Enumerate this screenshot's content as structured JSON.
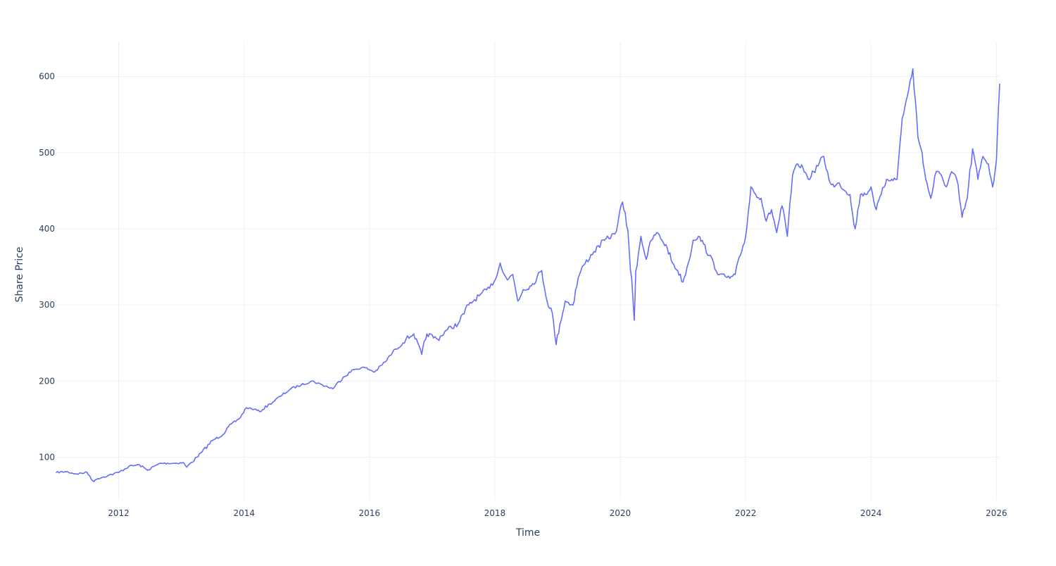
{
  "chart_data": {
    "type": "line",
    "title": "",
    "xlabel": "Time",
    "ylabel": "Share Price",
    "x_type": "date",
    "xlim": [
      "2011-01-03",
      "2026-01-20"
    ],
    "ylim": [
      44,
      645
    ],
    "x_ticks": [
      {
        "value": "2012-01-01",
        "label": "2012"
      },
      {
        "value": "2014-01-01",
        "label": "2014"
      },
      {
        "value": "2016-01-01",
        "label": "2016"
      },
      {
        "value": "2018-01-01",
        "label": "2018"
      },
      {
        "value": "2020-01-01",
        "label": "2020"
      },
      {
        "value": "2022-01-01",
        "label": "2022"
      },
      {
        "value": "2024-01-01",
        "label": "2024"
      },
      {
        "value": "2026-01-01",
        "label": "2026"
      }
    ],
    "y_ticks": [
      {
        "value": 100,
        "label": "100"
      },
      {
        "value": 200,
        "label": "200"
      },
      {
        "value": 300,
        "label": "300"
      },
      {
        "value": 400,
        "label": "400"
      },
      {
        "value": 500,
        "label": "500"
      },
      {
        "value": 600,
        "label": "600"
      }
    ],
    "grid": true,
    "legend": "none",
    "colors": {
      "line": "#636efa",
      "grid": "#ebf0f8",
      "text": "#2a3f5f",
      "background": "#ffffff"
    },
    "series": [
      {
        "x": [
          "2011-01-03",
          "2011-03-01",
          "2011-05-01",
          "2011-07-01",
          "2011-08-10",
          "2011-09-01",
          "2011-11-01",
          "2012-01-01",
          "2012-03-01",
          "2012-05-01",
          "2012-06-15",
          "2012-09-01",
          "2012-12-01",
          "2013-01-10",
          "2013-02-01",
          "2013-04-01",
          "2013-05-01",
          "2013-07-01",
          "2013-09-01",
          "2013-10-01",
          "2013-12-01",
          "2014-01-15",
          "2014-03-01",
          "2014-04-01",
          "2014-06-01",
          "2014-08-01",
          "2014-10-01",
          "2014-12-01",
          "2015-02-01",
          "2015-04-01",
          "2015-06-01",
          "2015-08-01",
          "2015-10-01",
          "2015-12-01",
          "2016-02-01",
          "2016-04-01",
          "2016-06-01",
          "2016-08-01",
          "2016-09-15",
          "2016-11-01",
          "2016-12-01",
          "2017-02-01",
          "2017-04-01",
          "2017-06-01",
          "2017-08-01",
          "2017-10-01",
          "2017-12-01",
          "2018-01-15",
          "2018-02-01",
          "2018-03-15",
          "2018-04-15",
          "2018-05-15",
          "2018-06-15",
          "2018-08-01",
          "2018-10-01",
          "2018-11-01",
          "2018-12-01",
          "2018-12-24",
          "2019-01-15",
          "2019-02-15",
          "2019-04-01",
          "2019-05-01",
          "2019-06-01",
          "2019-08-01",
          "2019-10-01",
          "2019-12-01",
          "2020-01-15",
          "2020-02-15",
          "2020-03-23",
          "2020-04-01",
          "2020-05-01",
          "2020-06-01",
          "2020-07-01",
          "2020-08-01",
          "2020-09-01",
          "2020-10-01",
          "2020-11-01",
          "2020-12-01",
          "2021-01-01",
          "2021-02-01",
          "2021-03-01",
          "2021-04-01",
          "2021-05-01",
          "2021-06-01",
          "2021-08-01",
          "2021-10-01",
          "2021-11-01",
          "2021-12-01",
          "2022-01-01",
          "2022-02-01",
          "2022-03-01",
          "2022-04-01",
          "2022-05-01",
          "2022-06-01",
          "2022-07-01",
          "2022-08-01",
          "2022-09-01",
          "2022-10-01",
          "2022-11-01",
          "2022-12-01",
          "2023-01-01",
          "2023-02-01",
          "2023-04-01",
          "2023-05-01",
          "2023-06-01",
          "2023-07-01",
          "2023-08-01",
          "2023-09-01",
          "2023-10-01",
          "2023-11-01",
          "2023-12-01",
          "2024-01-01",
          "2024-02-01",
          "2024-03-01",
          "2024-04-01",
          "2024-05-01",
          "2024-06-01",
          "2024-07-01",
          "2024-08-01",
          "2024-09-01",
          "2024-10-01",
          "2024-10-25",
          "2024-11-15",
          "2024-12-15",
          "2025-01-15",
          "2025-02-15",
          "2025-03-15",
          "2025-04-15",
          "2025-05-15",
          "2025-06-15",
          "2025-07-15",
          "2025-08-15",
          "2025-09-15",
          "2025-10-15",
          "2025-11-15",
          "2025-12-10",
          "2026-01-01",
          "2026-01-20"
        ],
        "y": [
          80,
          81,
          78,
          80,
          68,
          72,
          76,
          80,
          88,
          90,
          83,
          92,
          92,
          93,
          87,
          100,
          107,
          122,
          130,
          140,
          150,
          165,
          163,
          160,
          170,
          180,
          190,
          195,
          200,
          195,
          190,
          205,
          215,
          218,
          212,
          225,
          242,
          255,
          262,
          235,
          262,
          255,
          268,
          275,
          300,
          312,
          322,
          340,
          355,
          333,
          340,
          305,
          320,
          325,
          345,
          305,
          290,
          248,
          275,
          305,
          300,
          335,
          352,
          370,
          385,
          393,
          435,
          398,
          280,
          345,
          390,
          360,
          385,
          395,
          385,
          375,
          355,
          345,
          330,
          355,
          385,
          390,
          380,
          365,
          340,
          335,
          340,
          365,
          390,
          455,
          445,
          440,
          410,
          425,
          395,
          430,
          390,
          470,
          485,
          480,
          465,
          475,
          495,
          465,
          455,
          460,
          450,
          445,
          400,
          445,
          445,
          455,
          425,
          445,
          465,
          465,
          465,
          545,
          575,
          610,
          520,
          500,
          465,
          440,
          475,
          470,
          455,
          475,
          465,
          415,
          440,
          505,
          465,
          495,
          485,
          455,
          490,
          590
        ]
      }
    ]
  }
}
